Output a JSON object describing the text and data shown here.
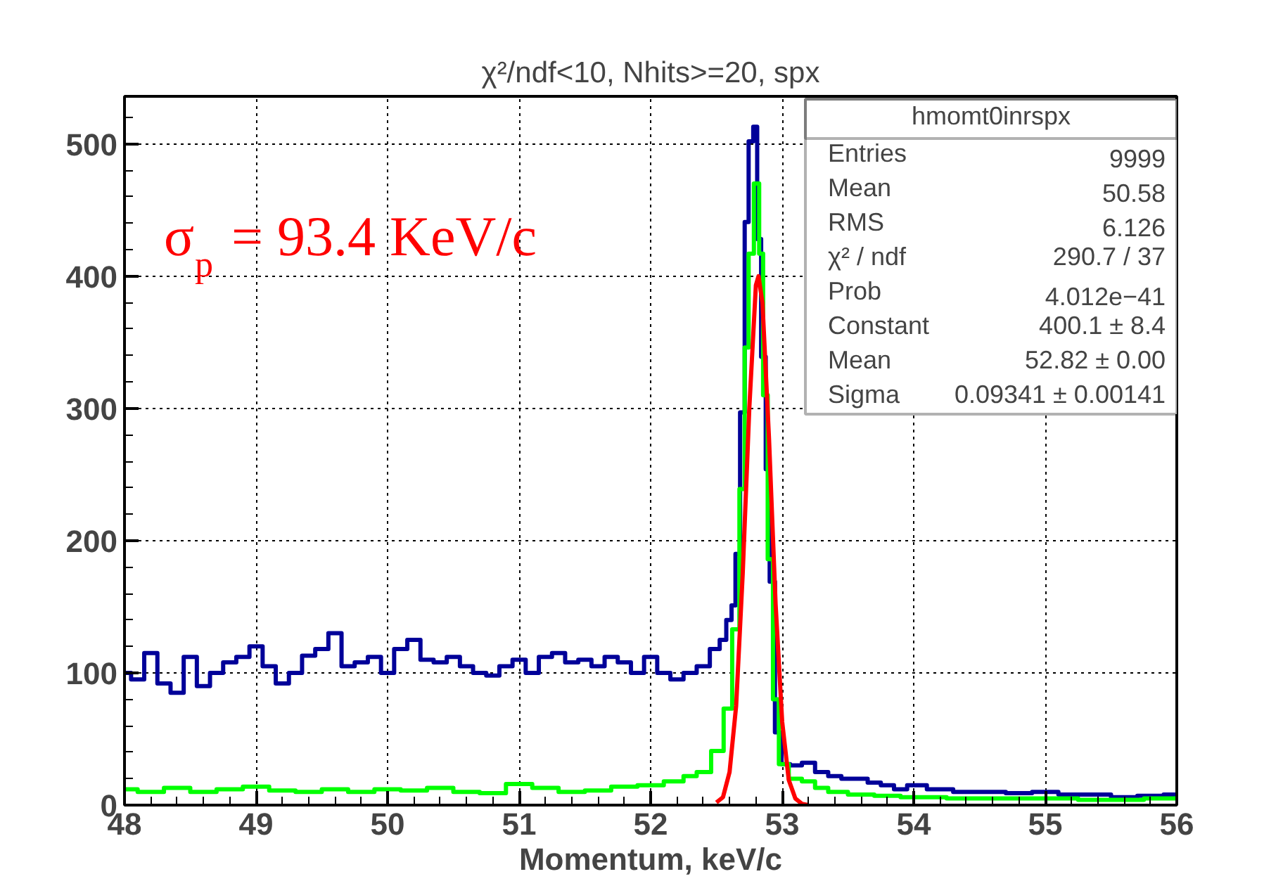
{
  "chart_data": {
    "type": "step",
    "title": "χ²/ndf<10, Nhits>=20, spx",
    "xlabel": "Momentum, keV/c",
    "xlim": [
      48,
      56
    ],
    "ylim": [
      0,
      536
    ],
    "xticks": [
      48,
      49,
      50,
      51,
      52,
      53,
      54,
      55,
      56
    ],
    "yticks": [
      0,
      100,
      200,
      300,
      400,
      500
    ],
    "grid": true,
    "annotations": [
      "σ$_{p}$ = 93.4 KeV/c",
      "hmomt0inrspx",
      "Entries",
      "9999",
      "Mean",
      "50.58",
      "RMS",
      "6.126",
      "χ² / ndf",
      "290.7 / 37",
      "Prob",
      "4.012e−41",
      "Constant",
      "400.1 ± 8.4",
      "Mean",
      "52.82 ± 0.00",
      "Sigma",
      "0.09341 ± 0.00141"
    ],
    "series": [
      {
        "type": "step",
        "color": "#000099",
        "x": [
          48.0,
          48.1,
          48.2,
          48.3,
          48.4,
          48.5,
          48.6,
          48.7,
          48.8,
          48.9,
          49.0,
          49.1,
          49.2,
          49.3,
          49.4,
          49.5,
          49.6,
          49.7,
          49.8,
          49.9,
          50.0,
          50.1,
          50.2,
          50.3,
          50.4,
          50.5,
          50.6,
          50.7,
          50.8,
          50.9,
          51.0,
          51.1,
          51.2,
          51.3,
          51.4,
          51.5,
          51.6,
          51.7,
          51.8,
          51.9,
          52.0,
          52.1,
          52.2,
          52.3,
          52.4,
          52.5,
          52.55,
          52.6,
          52.63,
          52.66,
          52.7,
          52.73,
          52.76,
          52.8,
          52.82,
          52.86,
          52.89,
          52.92,
          52.97,
          53.02,
          53.1,
          53.2,
          53.3,
          53.4,
          53.5,
          53.6,
          53.7,
          53.8,
          53.9,
          54.0,
          54.2,
          54.4,
          54.6,
          54.8,
          55.0,
          55.2,
          55.4,
          55.6,
          55.8,
          56.0
        ],
        "values": [
          100,
          95,
          115,
          92,
          85,
          112,
          90,
          100,
          108,
          112,
          120,
          105,
          92,
          100,
          113,
          118,
          130,
          105,
          108,
          112,
          100,
          118,
          125,
          110,
          108,
          112,
          105,
          100,
          98,
          105,
          110,
          100,
          112,
          115,
          108,
          110,
          105,
          112,
          108,
          100,
          112,
          100,
          95,
          100,
          105,
          118,
          125,
          140,
          151,
          190,
          297,
          441,
          502,
          513,
          428,
          339,
          254,
          169,
          55,
          31,
          30,
          32,
          25,
          22,
          20,
          20,
          17,
          15,
          12,
          15,
          12,
          10,
          10,
          9,
          10,
          8,
          8,
          6,
          7,
          8
        ]
      },
      {
        "type": "step",
        "color": "#00ff00",
        "x": [
          48.0,
          48.2,
          48.4,
          48.6,
          48.8,
          49.0,
          49.2,
          49.4,
          49.6,
          49.8,
          50.0,
          50.2,
          50.4,
          50.6,
          50.8,
          51.0,
          51.2,
          51.4,
          51.6,
          51.8,
          52.0,
          52.2,
          52.3,
          52.4,
          52.52,
          52.59,
          52.65,
          52.7,
          52.73,
          52.76,
          52.81,
          52.84,
          52.87,
          52.91,
          52.95,
          53.0,
          53.1,
          53.2,
          53.3,
          53.4,
          53.6,
          53.8,
          54.0,
          54.5,
          55.0,
          55.5,
          56.0
        ],
        "values": [
          12,
          10,
          13,
          10,
          12,
          14,
          11,
          10,
          12,
          10,
          12,
          11,
          13,
          10,
          9,
          16,
          13,
          10,
          11,
          14,
          15,
          18,
          22,
          25,
          41,
          73,
          133,
          239,
          346,
          417,
          470,
          417,
          310,
          186,
          80,
          31,
          20,
          18,
          13,
          10,
          8,
          7,
          6,
          5,
          5,
          4,
          5
        ]
      },
      {
        "type": "line",
        "color": "#ff0000",
        "x": [
          52.5,
          52.55,
          52.6,
          52.65,
          52.7,
          52.75,
          52.8,
          52.82,
          52.85,
          52.9,
          52.95,
          53.0,
          53.05,
          53.1,
          53.15,
          53.2
        ],
        "values": [
          2,
          6,
          25,
          75,
          175,
          300,
          393,
          400,
          380,
          277,
          152,
          63,
          19,
          5,
          1,
          0
        ]
      }
    ]
  }
}
